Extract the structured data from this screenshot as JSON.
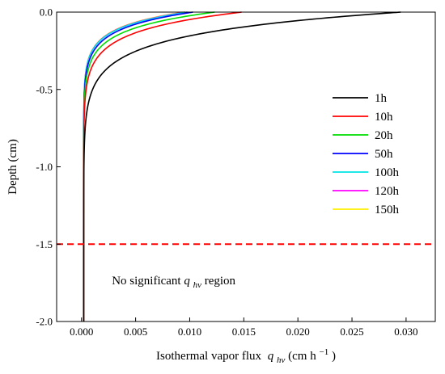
{
  "chart_data": {
    "type": "line",
    "title": "",
    "xlabel": "Isothermal vapor flux",
    "xlabel_symbol": "q",
    "xlabel_subscript": "hv",
    "xlabel_unit": " (cm h",
    "xlabel_unit_exp": "−1",
    "xlabel_unit_close": ")",
    "ylabel": "Depth (cm)",
    "xlim": [
      -0.0023,
      0.0327
    ],
    "ylim": [
      -2.0,
      0.0
    ],
    "xticks": [
      0.0,
      0.005,
      0.01,
      0.015,
      0.02,
      0.025,
      0.03
    ],
    "xtick_labels": [
      "0.000",
      "0.005",
      "0.010",
      "0.015",
      "0.020",
      "0.025",
      "0.030"
    ],
    "yticks": [
      0.0,
      -0.5,
      -1.0,
      -1.5,
      -2.0
    ],
    "ytick_labels": [
      "0.0",
      "-0.5",
      "-1.0",
      "-1.5",
      "-2.0"
    ],
    "grid": false,
    "legend_position": "right",
    "series": [
      {
        "name": "1h",
        "color": "#000000",
        "surface_flux": 0.0295,
        "decay": 0.14,
        "floor": 0.0002
      },
      {
        "name": "10h",
        "color": "#ff0000",
        "surface_flux": 0.0148,
        "decay": 0.12,
        "floor": 0.0002
      },
      {
        "name": "20h",
        "color": "#00dd00",
        "surface_flux": 0.0123,
        "decay": 0.11,
        "floor": 0.0002
      },
      {
        "name": "50h",
        "color": "#0000ff",
        "surface_flux": 0.0103,
        "decay": 0.105,
        "floor": 0.0002
      },
      {
        "name": "100h",
        "color": "#00e5e5",
        "surface_flux": 0.0098,
        "decay": 0.1,
        "floor": 0.0002
      },
      {
        "name": "120h",
        "color": "#ff00ff",
        "surface_flux": 0.0096,
        "decay": 0.1,
        "floor": 0.0002
      },
      {
        "name": "150h",
        "color": "#ffee00",
        "surface_flux": 0.0094,
        "decay": 0.1,
        "floor": 0.0002
      }
    ],
    "reference_line": {
      "y": -1.5,
      "color": "#ff0000",
      "style": "dashed"
    },
    "annotation": {
      "prefix": "No significant ",
      "symbol": "q",
      "subscript": "hv",
      "suffix": " region",
      "x": 0.0028,
      "y": -1.76
    }
  }
}
